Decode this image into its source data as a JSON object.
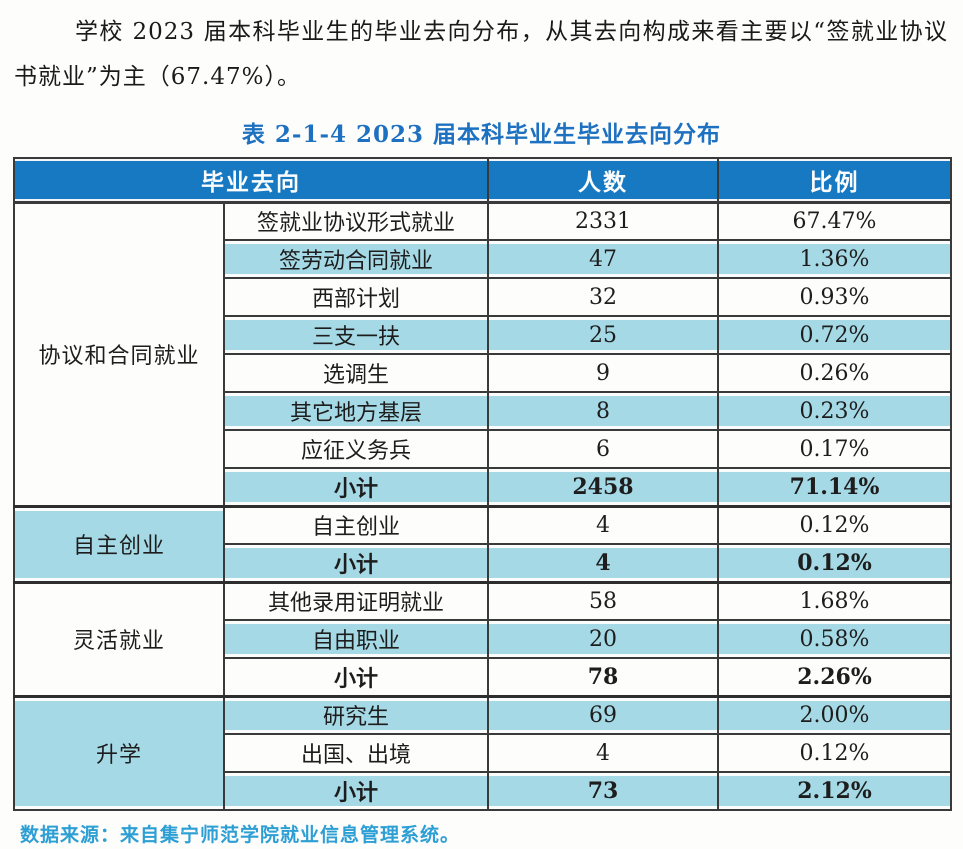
{
  "paragraph": "学校 2023 届本科毕业生的毕业去向分布，从其去向构成来看主要以“签就业协议书就业”为主（67.47%）。",
  "table_title": "表 2-1-4 2023 届本科毕业生毕业去向分布",
  "table": {
    "headers": {
      "destination": "毕业去向",
      "count": "人数",
      "ratio": "比例"
    },
    "groups": [
      {
        "name": "协议和合同就业",
        "shaded": false,
        "rows": [
          {
            "label": "签就业协议形式就业",
            "count": "2331",
            "ratio": "67.47%",
            "shaded": false,
            "bold": false
          },
          {
            "label": "签劳动合同就业",
            "count": "47",
            "ratio": "1.36%",
            "shaded": true,
            "bold": false
          },
          {
            "label": "西部计划",
            "count": "32",
            "ratio": "0.93%",
            "shaded": false,
            "bold": false
          },
          {
            "label": "三支一扶",
            "count": "25",
            "ratio": "0.72%",
            "shaded": true,
            "bold": false
          },
          {
            "label": "选调生",
            "count": "9",
            "ratio": "0.26%",
            "shaded": false,
            "bold": false
          },
          {
            "label": "其它地方基层",
            "count": "8",
            "ratio": "0.23%",
            "shaded": true,
            "bold": false
          },
          {
            "label": "应征义务兵",
            "count": "6",
            "ratio": "0.17%",
            "shaded": false,
            "bold": false
          },
          {
            "label": "小计",
            "count": "2458",
            "ratio": "71.14%",
            "shaded": true,
            "bold": true
          }
        ]
      },
      {
        "name": "自主创业",
        "shaded": true,
        "rows": [
          {
            "label": "自主创业",
            "count": "4",
            "ratio": "0.12%",
            "shaded": false,
            "bold": false
          },
          {
            "label": "小计",
            "count": "4",
            "ratio": "0.12%",
            "shaded": true,
            "bold": true
          }
        ]
      },
      {
        "name": "灵活就业",
        "shaded": false,
        "rows": [
          {
            "label": "其他录用证明就业",
            "count": "58",
            "ratio": "1.68%",
            "shaded": false,
            "bold": false
          },
          {
            "label": "自由职业",
            "count": "20",
            "ratio": "0.58%",
            "shaded": true,
            "bold": false
          },
          {
            "label": "小计",
            "count": "78",
            "ratio": "2.26%",
            "shaded": false,
            "bold": true
          }
        ]
      },
      {
        "name": "升学",
        "shaded": true,
        "rows": [
          {
            "label": "研究生",
            "count": "69",
            "ratio": "2.00%",
            "shaded": true,
            "bold": false
          },
          {
            "label": "出国、出境",
            "count": "4",
            "ratio": "0.12%",
            "shaded": false,
            "bold": false
          },
          {
            "label": "小计",
            "count": "73",
            "ratio": "2.12%",
            "shaded": true,
            "bold": true
          }
        ]
      }
    ]
  },
  "source_note": "数据来源：来自集宁师范学院就业信息管理系统。",
  "colors": {
    "header_blue": "#1779c2",
    "row_shade_blue": "#a5d9e5",
    "title_blue": "#1e71c0",
    "source_cyan": "#2d9fd4",
    "border": "#3a3a3a",
    "text": "#1d1d1d"
  }
}
